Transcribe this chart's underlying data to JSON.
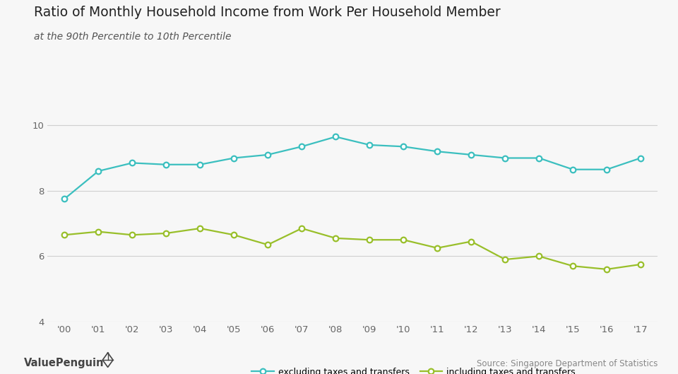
{
  "title": "Ratio of Monthly Household Income from Work Per Household Member",
  "subtitle": "at the 90th Percentile to 10th Percentile",
  "years": [
    "'00",
    "'01",
    "'02",
    "'03",
    "'04",
    "'05",
    "'06",
    "'07",
    "'08",
    "'09",
    "'10",
    "'11",
    "'12",
    "'13",
    "'14",
    "'15",
    "'16",
    "'17"
  ],
  "excl_taxes": [
    7.75,
    8.6,
    8.85,
    8.8,
    8.8,
    9.0,
    9.1,
    9.35,
    9.65,
    9.4,
    9.35,
    9.2,
    9.1,
    9.0,
    9.0,
    8.65,
    8.65,
    9.0
  ],
  "incl_taxes": [
    6.65,
    6.75,
    6.65,
    6.7,
    6.85,
    6.65,
    6.35,
    6.85,
    6.55,
    6.5,
    6.5,
    6.25,
    6.45,
    5.9,
    6.0,
    5.7,
    5.6,
    5.75
  ],
  "excl_color": "#3BBFBF",
  "incl_color": "#99BF2A",
  "bg_color": "#f7f7f7",
  "ylim": [
    4,
    10.4
  ],
  "yticks": [
    4,
    6,
    8,
    10
  ],
  "source_text": "Source: Singapore Department of Statistics",
  "logo_text": "ValuePenguin",
  "legend_excl": "excluding taxes and transfers",
  "legend_incl": "including taxes and transfers"
}
